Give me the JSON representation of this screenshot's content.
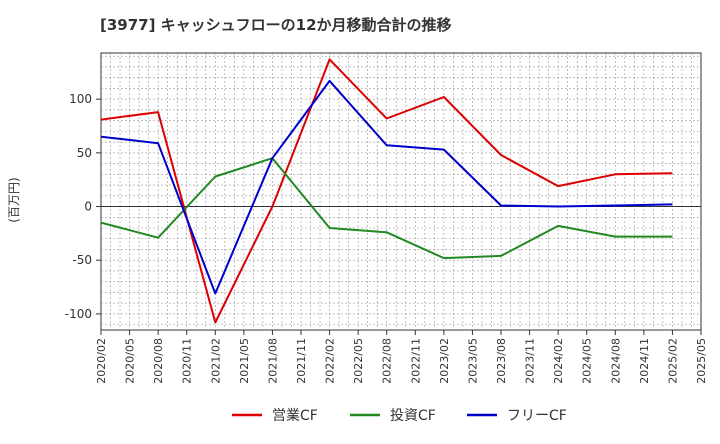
{
  "chart_data": {
    "type": "line",
    "title": "[3977]  キャッシュフローの12か月移動合計の推移",
    "ylabel": "(百万円)",
    "xlabel": "",
    "ylim": [
      -115,
      143
    ],
    "y_ticks": [
      -100,
      -50,
      0,
      50,
      100
    ],
    "y_tick_labels": [
      "-100",
      "-50",
      "0",
      "50",
      "100"
    ],
    "categories": [
      "2020/02",
      "2020/05",
      "2020/08",
      "2020/11",
      "2021/02",
      "2021/05",
      "2021/08",
      "2021/11",
      "2022/02",
      "2022/05",
      "2022/08",
      "2022/11",
      "2023/02",
      "2023/05",
      "2023/08",
      "2023/11",
      "2024/02",
      "2024/05",
      "2024/08",
      "2024/11",
      "2025/02",
      "2025/05"
    ],
    "grid": true,
    "legend_position": "bottom",
    "series": [
      {
        "name": "営業CF",
        "color": "#dd0000",
        "values": [
          81,
          null,
          88,
          null,
          -108,
          null,
          0,
          null,
          137,
          null,
          82,
          null,
          102,
          null,
          48,
          null,
          19,
          null,
          30,
          null,
          31,
          null
        ]
      },
      {
        "name": "投資CF",
        "color": "#228822",
        "values": [
          -15,
          null,
          -29,
          null,
          28,
          null,
          45,
          null,
          -20,
          null,
          -24,
          null,
          -48,
          null,
          -46,
          null,
          -18,
          null,
          -28,
          null,
          -28,
          null
        ]
      },
      {
        "name": "フリーCF",
        "color": "#0000cc",
        "values": [
          65,
          null,
          59,
          null,
          -81,
          null,
          45,
          null,
          117,
          null,
          57,
          null,
          53,
          null,
          1,
          null,
          0,
          null,
          1,
          null,
          2,
          null
        ]
      }
    ]
  }
}
